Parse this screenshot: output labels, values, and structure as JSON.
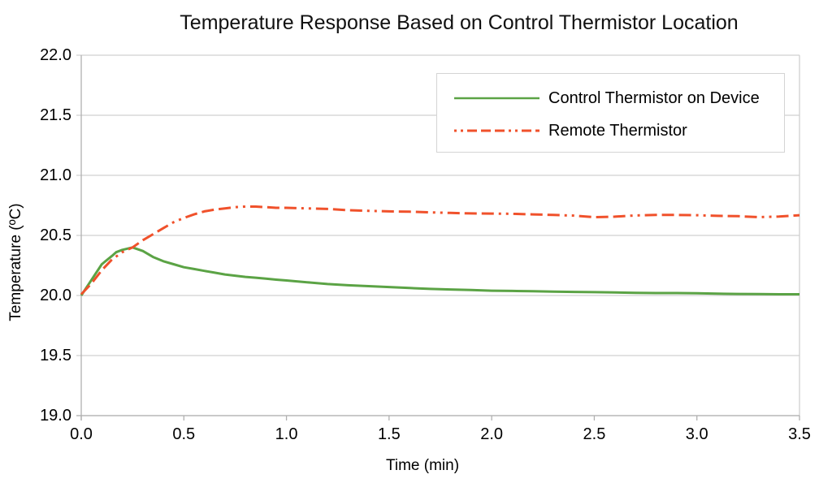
{
  "chart_data": {
    "type": "line",
    "title": "Temperature Response Based on Control Thermistor Location",
    "xlabel": "Time (min)",
    "ylabel": "Temperature (ºC)",
    "xlim": [
      0,
      3.5
    ],
    "ylim": [
      19.0,
      22.0
    ],
    "xticks": [
      "0.0",
      "0.5",
      "1.0",
      "1.5",
      "2.0",
      "2.5",
      "3.0",
      "3.5"
    ],
    "xtick_values": [
      0,
      0.5,
      1.0,
      1.5,
      2.0,
      2.5,
      3.0,
      3.5
    ],
    "yticks": [
      "22.0",
      "21.5",
      "21.0",
      "20.5",
      "20.0",
      "19.5",
      "19.0"
    ],
    "ytick_values": [
      22.0,
      21.5,
      21.0,
      20.5,
      20.0,
      19.5,
      19.0
    ],
    "grid": "horizontal-only",
    "legend_position": "top-right-inside",
    "colors": {
      "background": "#ffffff",
      "gridline": "#d0d0d0",
      "axis": "#b0b0b0",
      "text": "#000000",
      "legend_border": "#d4d4d4"
    },
    "series": [
      {
        "name": "Control Thermistor on Device",
        "color": "#5ba345",
        "style": "solid",
        "points": [
          [
            0.0,
            20.0
          ],
          [
            0.05,
            20.13
          ],
          [
            0.1,
            20.26
          ],
          [
            0.15,
            20.33
          ],
          [
            0.17,
            20.36
          ],
          [
            0.2,
            20.38
          ],
          [
            0.25,
            20.4
          ],
          [
            0.3,
            20.37
          ],
          [
            0.35,
            20.32
          ],
          [
            0.4,
            20.285
          ],
          [
            0.45,
            20.26
          ],
          [
            0.5,
            20.235
          ],
          [
            0.55,
            20.22
          ],
          [
            0.6,
            20.205
          ],
          [
            0.65,
            20.19
          ],
          [
            0.7,
            20.175
          ],
          [
            0.75,
            20.165
          ],
          [
            0.8,
            20.155
          ],
          [
            0.85,
            20.148
          ],
          [
            0.9,
            20.14
          ],
          [
            0.95,
            20.132
          ],
          [
            1.0,
            20.125
          ],
          [
            1.1,
            20.11
          ],
          [
            1.2,
            20.095
          ],
          [
            1.3,
            20.085
          ],
          [
            1.4,
            20.078
          ],
          [
            1.5,
            20.07
          ],
          [
            1.6,
            20.062
          ],
          [
            1.7,
            20.055
          ],
          [
            1.8,
            20.05
          ],
          [
            1.9,
            20.045
          ],
          [
            2.0,
            20.04
          ],
          [
            2.1,
            20.038
          ],
          [
            2.2,
            20.035
          ],
          [
            2.3,
            20.032
          ],
          [
            2.4,
            20.03
          ],
          [
            2.5,
            20.028
          ],
          [
            2.6,
            20.025
          ],
          [
            2.7,
            20.022
          ],
          [
            2.8,
            20.02
          ],
          [
            2.9,
            20.02
          ],
          [
            3.0,
            20.018
          ],
          [
            3.1,
            20.015
          ],
          [
            3.2,
            20.013
          ],
          [
            3.3,
            20.012
          ],
          [
            3.4,
            20.01
          ],
          [
            3.5,
            20.01
          ]
        ]
      },
      {
        "name": "Remote Thermistor",
        "color": "#f0512b",
        "style": "long-dash-dot-dot",
        "points": [
          [
            0.0,
            20.01
          ],
          [
            0.05,
            20.1
          ],
          [
            0.1,
            20.21
          ],
          [
            0.15,
            20.3
          ],
          [
            0.2,
            20.36
          ],
          [
            0.25,
            20.4
          ],
          [
            0.3,
            20.46
          ],
          [
            0.35,
            20.51
          ],
          [
            0.4,
            20.56
          ],
          [
            0.45,
            20.61
          ],
          [
            0.5,
            20.645
          ],
          [
            0.55,
            20.675
          ],
          [
            0.6,
            20.7
          ],
          [
            0.65,
            20.715
          ],
          [
            0.7,
            20.725
          ],
          [
            0.75,
            20.735
          ],
          [
            0.8,
            20.74
          ],
          [
            0.85,
            20.74
          ],
          [
            0.9,
            20.735
          ],
          [
            0.95,
            20.73
          ],
          [
            1.0,
            20.73
          ],
          [
            1.1,
            20.725
          ],
          [
            1.2,
            20.72
          ],
          [
            1.3,
            20.71
          ],
          [
            1.4,
            20.705
          ],
          [
            1.5,
            20.7
          ],
          [
            1.6,
            20.697
          ],
          [
            1.7,
            20.692
          ],
          [
            1.8,
            20.687
          ],
          [
            1.9,
            20.683
          ],
          [
            2.0,
            20.682
          ],
          [
            2.1,
            20.68
          ],
          [
            2.2,
            20.675
          ],
          [
            2.3,
            20.67
          ],
          [
            2.4,
            20.665
          ],
          [
            2.5,
            20.652
          ],
          [
            2.6,
            20.656
          ],
          [
            2.7,
            20.666
          ],
          [
            2.8,
            20.67
          ],
          [
            2.9,
            20.67
          ],
          [
            3.0,
            20.668
          ],
          [
            3.1,
            20.663
          ],
          [
            3.2,
            20.66
          ],
          [
            3.3,
            20.652
          ],
          [
            3.4,
            20.657
          ],
          [
            3.5,
            20.668
          ]
        ]
      }
    ]
  }
}
